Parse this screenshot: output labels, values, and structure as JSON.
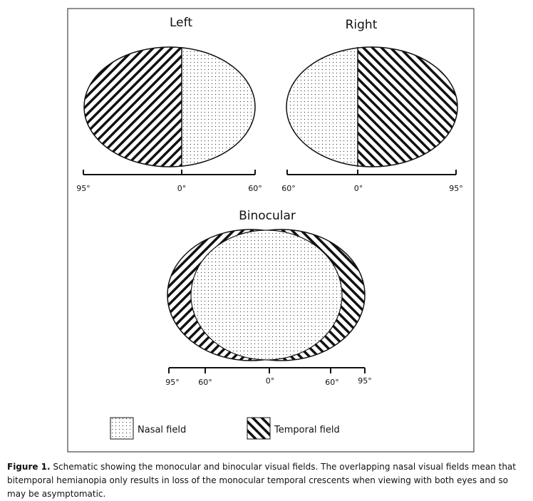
{
  "panels": {
    "left": {
      "title": "Left",
      "scale": [
        "95°",
        "0°",
        "60°"
      ]
    },
    "right": {
      "title": "Right",
      "scale": [
        "60°",
        "0°",
        "95°"
      ]
    },
    "binocular": {
      "title": "Binocular",
      "scale": [
        "95°",
        "60°",
        "0°",
        "60°",
        "95°"
      ]
    }
  },
  "legend": {
    "nasal": "Nasal field",
    "temporal": "Temporal field"
  },
  "caption": {
    "label": "Figure 1.",
    "text": "Schematic showing the monocular and binocular visual fields. The overlapping nasal visual fields mean that bitemporal hemianopia only results in loss of the monocular temporal crescents when viewing with both eyes and so may be asymptomatic."
  }
}
